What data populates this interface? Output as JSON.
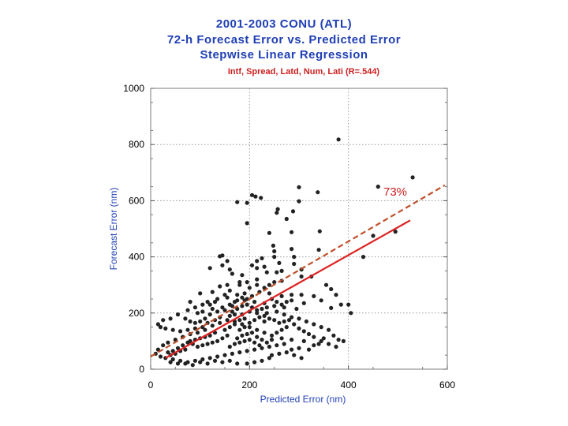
{
  "chart_data": {
    "type": "scatter",
    "title_lines": [
      "2001-2003 CONU (ATL)",
      "72-h Forecast Error vs. Predicted Error",
      "Stepwise Linear Regression"
    ],
    "subtitle": "Intf, Spread, Latd, Num, Lati  (R=.544)",
    "xlabel": "Predicted Error (nm)",
    "ylabel": "Forecast Error (nm)",
    "xlim": [
      0,
      600
    ],
    "ylim": [
      0,
      1000
    ],
    "xticks": [
      "0",
      "200",
      "400",
      "600"
    ],
    "yticks": [
      "0",
      "200",
      "400",
      "600",
      "800",
      "1000"
    ],
    "grid": true,
    "annotation": "73%",
    "lines": [
      {
        "name": "regression",
        "style": "solid",
        "color": "#dd2222",
        "x": [
          30,
          525
        ],
        "y": [
          40,
          530
        ]
      },
      {
        "name": "upper",
        "style": "dashed",
        "color": "#c0502a",
        "x": [
          0,
          595
        ],
        "y": [
          45,
          655
        ]
      }
    ],
    "point_color": "#222222",
    "points": [
      [
        380,
        818
      ],
      [
        530,
        683
      ],
      [
        300,
        648
      ],
      [
        338,
        630
      ],
      [
        205,
        620
      ],
      [
        212,
        615
      ],
      [
        223,
        610
      ],
      [
        175,
        595
      ],
      [
        195,
        592
      ],
      [
        300,
        598
      ],
      [
        257,
        570
      ],
      [
        288,
        562
      ],
      [
        255,
        557
      ],
      [
        275,
        535
      ],
      [
        342,
        491
      ],
      [
        240,
        485
      ],
      [
        195,
        520
      ],
      [
        285,
        488
      ],
      [
        248,
        440
      ],
      [
        250,
        420
      ],
      [
        285,
        428
      ],
      [
        290,
        400
      ],
      [
        340,
        425
      ],
      [
        250,
        400
      ],
      [
        225,
        395
      ],
      [
        215,
        385
      ],
      [
        260,
        378
      ],
      [
        290,
        375
      ],
      [
        215,
        360
      ],
      [
        230,
        365
      ],
      [
        255,
        345
      ],
      [
        140,
        402
      ],
      [
        145,
        405
      ],
      [
        155,
        385
      ],
      [
        145,
        370
      ],
      [
        120,
        360
      ],
      [
        160,
        355
      ],
      [
        165,
        340
      ],
      [
        185,
        335
      ],
      [
        205,
        370
      ],
      [
        235,
        345
      ],
      [
        265,
        350
      ],
      [
        305,
        355
      ],
      [
        325,
        330
      ],
      [
        305,
        330
      ],
      [
        265,
        315
      ],
      [
        250,
        310
      ],
      [
        215,
        320
      ],
      [
        195,
        310
      ],
      [
        180,
        310
      ],
      [
        155,
        300
      ],
      [
        140,
        295
      ],
      [
        125,
        275
      ],
      [
        100,
        270
      ],
      [
        80,
        240
      ],
      [
        115,
        240
      ],
      [
        135,
        250
      ],
      [
        155,
        255
      ],
      [
        175,
        265
      ],
      [
        190,
        270
      ],
      [
        220,
        275
      ],
      [
        240,
        270
      ],
      [
        265,
        260
      ],
      [
        285,
        265
      ],
      [
        305,
        265
      ],
      [
        330,
        260
      ],
      [
        355,
        300
      ],
      [
        365,
        285
      ],
      [
        375,
        265
      ],
      [
        385,
        230
      ],
      [
        400,
        230
      ],
      [
        405,
        200
      ],
      [
        365,
        218
      ],
      [
        345,
        245
      ],
      [
        310,
        235
      ],
      [
        295,
        215
      ],
      [
        270,
        220
      ],
      [
        250,
        225
      ],
      [
        230,
        235
      ],
      [
        210,
        240
      ],
      [
        190,
        245
      ],
      [
        165,
        225
      ],
      [
        145,
        220
      ],
      [
        125,
        215
      ],
      [
        105,
        205
      ],
      [
        95,
        200
      ],
      [
        75,
        210
      ],
      [
        55,
        195
      ],
      [
        40,
        180
      ],
      [
        25,
        175
      ],
      [
        15,
        160
      ],
      [
        20,
        150
      ],
      [
        30,
        145
      ],
      [
        45,
        140
      ],
      [
        60,
        135
      ],
      [
        75,
        140
      ],
      [
        90,
        145
      ],
      [
        105,
        150
      ],
      [
        115,
        165
      ],
      [
        130,
        175
      ],
      [
        140,
        185
      ],
      [
        160,
        190
      ],
      [
        170,
        195
      ],
      [
        185,
        195
      ],
      [
        200,
        205
      ],
      [
        215,
        210
      ],
      [
        235,
        200
      ],
      [
        255,
        205
      ],
      [
        270,
        195
      ],
      [
        285,
        185
      ],
      [
        300,
        180
      ],
      [
        315,
        170
      ],
      [
        330,
        160
      ],
      [
        345,
        150
      ],
      [
        360,
        140
      ],
      [
        350,
        110
      ],
      [
        370,
        120
      ],
      [
        380,
        105
      ],
      [
        340,
        90
      ],
      [
        310,
        100
      ],
      [
        285,
        105
      ],
      [
        265,
        110
      ],
      [
        245,
        120
      ],
      [
        230,
        130
      ],
      [
        215,
        140
      ],
      [
        200,
        150
      ],
      [
        185,
        160
      ],
      [
        170,
        170
      ],
      [
        155,
        175
      ],
      [
        140,
        165
      ],
      [
        125,
        155
      ],
      [
        110,
        140
      ],
      [
        95,
        130
      ],
      [
        80,
        125
      ],
      [
        65,
        115
      ],
      [
        50,
        105
      ],
      [
        35,
        95
      ],
      [
        25,
        85
      ],
      [
        15,
        70
      ],
      [
        10,
        55
      ],
      [
        20,
        45
      ],
      [
        30,
        40
      ],
      [
        45,
        35
      ],
      [
        60,
        30
      ],
      [
        75,
        25
      ],
      [
        90,
        30
      ],
      [
        105,
        35
      ],
      [
        120,
        40
      ],
      [
        135,
        45
      ],
      [
        150,
        50
      ],
      [
        165,
        55
      ],
      [
        180,
        60
      ],
      [
        195,
        65
      ],
      [
        210,
        70
      ],
      [
        225,
        75
      ],
      [
        240,
        80
      ],
      [
        255,
        85
      ],
      [
        270,
        90
      ],
      [
        285,
        70
      ],
      [
        300,
        75
      ],
      [
        195,
        20
      ],
      [
        210,
        25
      ],
      [
        225,
        30
      ],
      [
        240,
        40
      ],
      [
        175,
        20
      ],
      [
        160,
        30
      ],
      [
        145,
        25
      ],
      [
        130,
        30
      ],
      [
        115,
        20
      ],
      [
        100,
        25
      ],
      [
        85,
        15
      ],
      [
        70,
        20
      ],
      [
        55,
        20
      ],
      [
        40,
        25
      ],
      [
        175,
        110
      ],
      [
        185,
        120
      ],
      [
        195,
        125
      ],
      [
        205,
        130
      ],
      [
        215,
        115
      ],
      [
        225,
        105
      ],
      [
        235,
        95
      ],
      [
        245,
        105
      ],
      [
        255,
        130
      ],
      [
        265,
        140
      ],
      [
        275,
        150
      ],
      [
        155,
        120
      ],
      [
        145,
        110
      ],
      [
        135,
        100
      ],
      [
        125,
        95
      ],
      [
        115,
        90
      ],
      [
        105,
        85
      ],
      [
        95,
        80
      ],
      [
        85,
        90
      ],
      [
        75,
        95
      ],
      [
        65,
        85
      ],
      [
        55,
        75
      ],
      [
        45,
        65
      ],
      [
        35,
        60
      ],
      [
        160,
        80
      ],
      [
        170,
        90
      ],
      [
        180,
        95
      ],
      [
        190,
        100
      ],
      [
        200,
        105
      ],
      [
        210,
        95
      ],
      [
        220,
        85
      ],
      [
        230,
        170
      ],
      [
        240,
        180
      ],
      [
        250,
        175
      ],
      [
        260,
        165
      ],
      [
        270,
        170
      ],
      [
        280,
        175
      ],
      [
        290,
        160
      ],
      [
        300,
        145
      ],
      [
        310,
        135
      ],
      [
        320,
        125
      ],
      [
        330,
        115
      ],
      [
        180,
        140
      ],
      [
        190,
        150
      ],
      [
        200,
        165
      ],
      [
        210,
        175
      ],
      [
        220,
        185
      ],
      [
        230,
        190
      ],
      [
        150,
        140
      ],
      [
        160,
        150
      ],
      [
        170,
        160
      ],
      [
        180,
        175
      ],
      [
        190,
        180
      ],
      [
        130,
        130
      ],
      [
        120,
        120
      ],
      [
        110,
        115
      ],
      [
        100,
        110
      ],
      [
        90,
        105
      ],
      [
        80,
        100
      ],
      [
        70,
        70
      ],
      [
        60,
        65
      ],
      [
        50,
        55
      ],
      [
        40,
        50
      ],
      [
        165,
        205
      ],
      [
        175,
        215
      ],
      [
        185,
        225
      ],
      [
        195,
        230
      ],
      [
        205,
        220
      ],
      [
        215,
        200
      ],
      [
        225,
        215
      ],
      [
        235,
        220
      ],
      [
        245,
        250
      ],
      [
        255,
        240
      ],
      [
        265,
        230
      ],
      [
        275,
        240
      ],
      [
        285,
        245
      ],
      [
        175,
        245
      ],
      [
        185,
        255
      ],
      [
        195,
        250
      ],
      [
        205,
        260
      ],
      [
        450,
        475
      ],
      [
        495,
        490
      ],
      [
        460,
        650
      ],
      [
        430,
        400
      ],
      [
        180,
        300
      ],
      [
        200,
        290
      ],
      [
        215,
        300
      ],
      [
        230,
        290
      ],
      [
        240,
        300
      ],
      [
        160,
        280
      ],
      [
        150,
        265
      ],
      [
        130,
        240
      ],
      [
        120,
        230
      ],
      [
        105,
        230
      ],
      [
        90,
        220
      ],
      [
        70,
        180
      ],
      [
        80,
        170
      ],
      [
        90,
        165
      ],
      [
        100,
        170
      ],
      [
        110,
        180
      ],
      [
        120,
        195
      ],
      [
        135,
        205
      ],
      [
        150,
        210
      ],
      [
        160,
        230
      ],
      [
        170,
        240
      ],
      [
        245,
        50
      ],
      [
        260,
        55
      ],
      [
        275,
        60
      ],
      [
        290,
        50
      ],
      [
        305,
        40
      ],
      [
        320,
        70
      ],
      [
        330,
        85
      ],
      [
        345,
        100
      ],
      [
        360,
        90
      ],
      [
        375,
        80
      ],
      [
        390,
        100
      ]
    ]
  }
}
